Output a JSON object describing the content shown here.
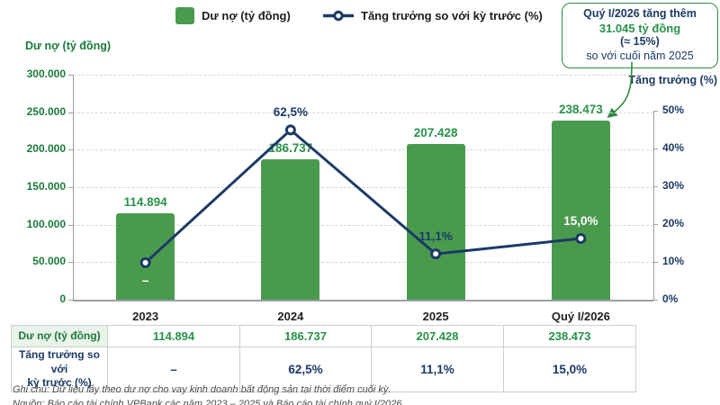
{
  "legend": {
    "bar_label": "Dư nợ (tỷ đồng)",
    "line_label": "Tăng trưởng so với kỳ trước (%)"
  },
  "left_axis_title": "Dư nợ (tỷ đồng)",
  "right_axis_title": "Tăng trưởng (%)",
  "annotation": {
    "line1": "Quý I/2026 tăng thêm",
    "line2": "31.045 tỷ đồng",
    "line3": "(≈ 15%)",
    "line4": "so với cuối năm 2025"
  },
  "chart_data": {
    "type": "bar+line",
    "categories": [
      "2023",
      "2024",
      "2025",
      "Quý I/2026"
    ],
    "series": [
      {
        "name": "Dư nợ (tỷ đồng)",
        "type": "bar",
        "values": [
          114894,
          186737,
          207428,
          238473
        ],
        "value_labels": [
          "114.894",
          "186.737",
          "207.428",
          "238.473"
        ]
      },
      {
        "name": "Tăng trưởng so với kỳ trước (%)",
        "type": "line",
        "values": [
          null,
          62.5,
          11.1,
          15.0
        ],
        "value_labels": [
          "–",
          "62,5%",
          "11,1%",
          "15,0%"
        ]
      }
    ],
    "left_axis": {
      "title": "Dư nợ (tỷ đồng)",
      "range": [
        0,
        300000
      ],
      "ticks": [
        "300.000",
        "250.000",
        "200.000",
        "150.000",
        "100.000",
        "50.000",
        "0"
      ]
    },
    "right_axis": {
      "title": "Tăng trưởng (%)",
      "range": [
        0,
        50
      ],
      "ticks": [
        "50%",
        "40%",
        "30%",
        "20%",
        "10%",
        "0%"
      ]
    },
    "grid": "horizontal-dashed",
    "legend_position": "top-center",
    "layout_hints": {
      "line_plotted_percent": [
        9.8,
        44.9,
        12.1,
        16.2
      ],
      "growth_label_pos": [
        "below",
        "above",
        "above",
        "above"
      ],
      "growth_label_color": [
        "white",
        "navy",
        "navy",
        "white"
      ]
    }
  },
  "table": {
    "rows": [
      {
        "label": "Dư nợ (tỷ đồng)",
        "values": [
          "114.894",
          "186.737",
          "207.428",
          "238.473"
        ]
      },
      {
        "label": "Tăng trưởng so với\nkỳ trước (%)",
        "values": [
          "–",
          "62,5%",
          "11,1%",
          "15,0%"
        ]
      }
    ]
  },
  "footnotes": {
    "note": "Ghi chú: Dữ liệu lấy theo dư nợ cho vay kinh doanh bất động sản tại thời điểm cuối kỳ.",
    "source": "Nguồn: Báo cáo tài chính VPBank các năm 2023 – 2025 và Báo cáo tài chính quý I/2026"
  },
  "colors": {
    "bar_green": "#4a9a4e",
    "green_text": "#28924a",
    "green_dark": "#1a7a3a",
    "navy": "#1b3a66",
    "anno_green": "#2e8b3e",
    "grid": "#d8d8d8",
    "axis_line": "#9aa0a6",
    "table_border": "#c9d2c9",
    "table_label_bg": "#e9f3e9",
    "footnote": "#4a4a4a"
  }
}
